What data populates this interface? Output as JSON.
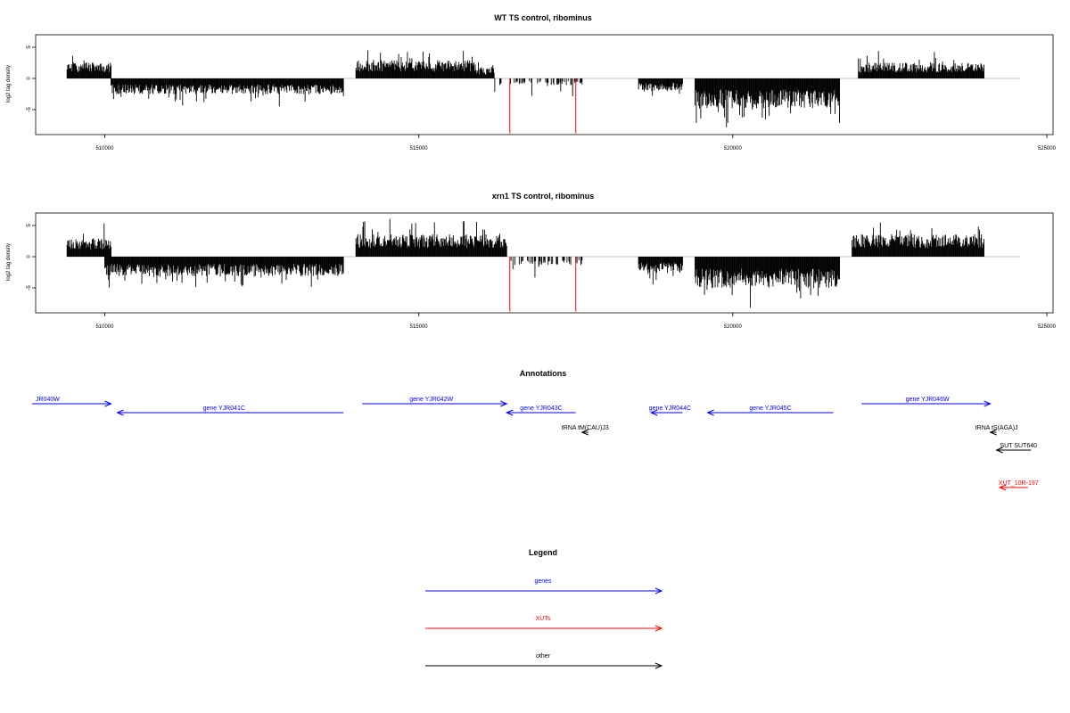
{
  "chart_data": [
    {
      "type": "bar",
      "title": "WT TS control, ribominus",
      "xlabel": "",
      "ylabel": "log2 tag density",
      "xlim": [
        508900,
        525100
      ],
      "ylim": [
        -9,
        7
      ],
      "x_ticks": [
        510000,
        515000,
        520000,
        525000
      ],
      "y_ticks": [
        5,
        0,
        -5
      ],
      "baseline": 0,
      "grid": false,
      "segments": [
        {
          "start": 509400,
          "end": 510100,
          "sign": 1,
          "mean": 2.2,
          "amp": 2.5
        },
        {
          "start": 510100,
          "end": 513800,
          "sign": -1,
          "mean": 2.1,
          "amp": 2.0
        },
        {
          "start": 514000,
          "end": 515900,
          "sign": 1,
          "mean": 2.4,
          "amp": 2.6
        },
        {
          "start": 515900,
          "end": 516200,
          "sign": 1,
          "mean": 1.4,
          "amp": 1.6
        },
        {
          "start": 516200,
          "end": 517600,
          "sign": -1,
          "mean": 0.9,
          "amp": 2.2,
          "density": 0.4
        },
        {
          "start": 518500,
          "end": 519200,
          "sign": -1,
          "mean": 1.6,
          "amp": 1.6
        },
        {
          "start": 519400,
          "end": 521700,
          "sign": -1,
          "mean": 4.0,
          "amp": 3.6
        },
        {
          "start": 522000,
          "end": 524000,
          "sign": 1,
          "mean": 2.1,
          "amp": 2.6
        }
      ],
      "highlights": [
        {
          "x": 516450,
          "y": -8.8
        },
        {
          "x": 517500,
          "y": -8.8
        }
      ],
      "seed": 11
    },
    {
      "type": "bar",
      "title": "xrn1 TS control, ribominus",
      "xlabel": "",
      "ylabel": "log2 tag density",
      "xlim": [
        508900,
        525100
      ],
      "ylim": [
        -9,
        7
      ],
      "x_ticks": [
        510000,
        515000,
        520000,
        525000
      ],
      "y_ticks": [
        5,
        0,
        -5
      ],
      "baseline": 0,
      "grid": false,
      "segments": [
        {
          "start": 509400,
          "end": 510100,
          "sign": 1,
          "mean": 2.6,
          "amp": 2.8
        },
        {
          "start": 510000,
          "end": 513800,
          "sign": -1,
          "mean": 2.6,
          "amp": 2.4
        },
        {
          "start": 514000,
          "end": 516400,
          "sign": 1,
          "mean": 3.0,
          "amp": 2.8
        },
        {
          "start": 516400,
          "end": 517600,
          "sign": -1,
          "mean": 1.2,
          "amp": 2.4,
          "density": 0.45
        },
        {
          "start": 518500,
          "end": 519200,
          "sign": -1,
          "mean": 2.2,
          "amp": 2.6
        },
        {
          "start": 519400,
          "end": 521700,
          "sign": -1,
          "mean": 4.2,
          "amp": 3.8
        },
        {
          "start": 521900,
          "end": 524000,
          "sign": 1,
          "mean": 3.0,
          "amp": 2.8
        }
      ],
      "highlights": [
        {
          "x": 516450,
          "y": -8.8
        },
        {
          "x": 517500,
          "y": -8.8
        }
      ],
      "seed": 23
    }
  ],
  "annotations": {
    "title": "Annotations",
    "features": [
      {
        "label": "JR040W",
        "color": "#0000ff",
        "row": 0,
        "x1": 508100,
        "x2": 510100,
        "dir": "right",
        "label_x": 508800
      },
      {
        "label": "gene YJR041C",
        "color": "#0000ff",
        "row": 1,
        "x1": 510200,
        "x2": 513800,
        "dir": "left",
        "label_x": 511900
      },
      {
        "label": "gene YJR042W",
        "color": "#0000ff",
        "row": 0,
        "x1": 514100,
        "x2": 516400,
        "dir": "right",
        "label_x": 515200
      },
      {
        "label": "gene YJR043C",
        "color": "#0000ff",
        "row": 1,
        "x1": 516400,
        "x2": 517500,
        "dir": "left",
        "label_x": 516950
      },
      {
        "label": "gene YJR044C",
        "color": "#0000ff",
        "row": 1,
        "x1": 518700,
        "x2": 519200,
        "dir": "left",
        "label_x": 519000
      },
      {
        "label": "gene YJR045C",
        "color": "#0000ff",
        "row": 1,
        "x1": 519600,
        "x2": 521600,
        "dir": "left",
        "label_x": 520600
      },
      {
        "label": "gene YJR046W",
        "color": "#0000ff",
        "row": 0,
        "x1": 522050,
        "x2": 524100,
        "dir": "right",
        "label_x": 523100
      },
      {
        "label": "tRNA tM(CAU)J3",
        "color": "#000000",
        "row": 2,
        "x1": 517600,
        "x2": 517700,
        "dir": "left",
        "label_x": 517650
      },
      {
        "label": "tRNA tS(AGA)J",
        "color": "#000000",
        "row": 2,
        "x1": 524100,
        "x2": 524200,
        "dir": "left",
        "label_x": 524200
      },
      {
        "label": "SUT SUT640",
        "color": "#000000",
        "row": 3,
        "x1": 524200,
        "x2": 524750,
        "dir": "left",
        "label_x": 524550
      },
      {
        "label": "XUT_10R-197",
        "color": "#ff0000",
        "row": 5,
        "x1": 524250,
        "x2": 524700,
        "dir": "left",
        "label_x": 524550
      }
    ]
  },
  "legend": {
    "title": "Legend",
    "items": [
      {
        "label": "genes",
        "color": "#0000ff"
      },
      {
        "label": "XUTs",
        "color": "#ff0000"
      },
      {
        "label": "other",
        "color": "#000000"
      }
    ]
  },
  "colors": {
    "bars": "#000000",
    "highlight": "#ff0000",
    "baseline": "#aaaaaa",
    "axis": "#000000"
  }
}
